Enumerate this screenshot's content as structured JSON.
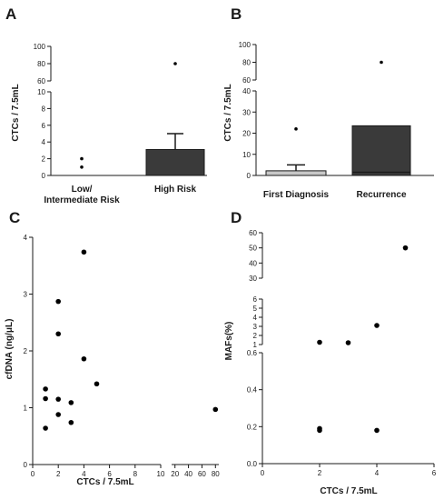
{
  "colors": {
    "axis": "#1a1a1a",
    "text": "#1a1a1a",
    "bar_dark": "#3a3a3a",
    "bar_light": "#c8c8c8",
    "point": "#000000"
  },
  "chart_data": [
    {
      "panel": "A",
      "type": "bar",
      "ylabel": "CTCs / 7.5mL",
      "broken_y_axis": true,
      "y_segments": [
        {
          "range": [
            0,
            10
          ],
          "ticks": [
            "0",
            "2",
            "4",
            "6",
            "8",
            "10"
          ]
        },
        {
          "range": [
            60,
            100
          ],
          "ticks": [
            "60",
            "80",
            "100"
          ]
        }
      ],
      "categories": [
        "Low/\nIntermediate Risk",
        "High Risk"
      ],
      "category_lines": [
        [
          "Low/",
          "Intermediate Risk"
        ],
        [
          "High Risk"
        ]
      ],
      "values": [
        0,
        3.1
      ],
      "error_upper": [
        0,
        5.0
      ],
      "outliers": [
        [
          2,
          1
        ],
        [
          80
        ]
      ]
    },
    {
      "panel": "B",
      "type": "bar",
      "ylabel": "CTCs / 7.5mL",
      "broken_y_axis": true,
      "y_segments": [
        {
          "range": [
            0,
            40
          ],
          "ticks": [
            "0",
            "10",
            "20",
            "30",
            "40"
          ]
        },
        {
          "range": [
            60,
            100
          ],
          "ticks": [
            "60",
            "80",
            "100"
          ]
        }
      ],
      "categories": [
        "First Diagnosis",
        "Recurrence"
      ],
      "category_lines": [
        [
          "First Diagnosis"
        ],
        [
          "Recurrence"
        ]
      ],
      "values": [
        2.2,
        23.5
      ],
      "median_line": [
        null,
        1.5
      ],
      "error_upper": [
        5.0,
        null
      ],
      "outliers": [
        [
          22
        ],
        [
          80
        ]
      ]
    },
    {
      "panel": "C",
      "type": "scatter",
      "xlabel": "CTCs / 7.5mL",
      "ylabel": "cfDNA (ng/μL)",
      "broken_x_axis": true,
      "x_segments": [
        {
          "range": [
            0,
            10
          ],
          "ticks": [
            "0",
            "2",
            "4",
            "6",
            "8",
            "10"
          ]
        },
        {
          "range": [
            15,
            85
          ],
          "ticks": [
            "20",
            "40",
            "60",
            "80"
          ]
        }
      ],
      "ylim": [
        0,
        4
      ],
      "yticks": [
        "0",
        "1",
        "2",
        "3",
        "4"
      ],
      "points": [
        {
          "x": 1,
          "y": 1.33
        },
        {
          "x": 1,
          "y": 1.16
        },
        {
          "x": 1,
          "y": 0.64
        },
        {
          "x": 2,
          "y": 2.87
        },
        {
          "x": 2,
          "y": 2.3
        },
        {
          "x": 2,
          "y": 1.15
        },
        {
          "x": 2,
          "y": 0.88
        },
        {
          "x": 3,
          "y": 1.09
        },
        {
          "x": 3,
          "y": 0.74
        },
        {
          "x": 4,
          "y": 3.74
        },
        {
          "x": 4,
          "y": 1.86
        },
        {
          "x": 5,
          "y": 1.42
        },
        {
          "x": 80,
          "y": 0.97
        }
      ]
    },
    {
      "panel": "D",
      "type": "scatter",
      "xlabel": "CTCs / 7.5mL",
      "ylabel": "MAFs(%)",
      "broken_y_axis": true,
      "xlim": [
        0,
        6
      ],
      "xticks": [
        "0",
        "2",
        "4",
        "6"
      ],
      "y_segments": [
        {
          "range": [
            0,
            0.6
          ],
          "ticks": [
            "0.0",
            "0.2",
            "0.4",
            "0.6"
          ]
        },
        {
          "range": [
            1,
            6
          ],
          "ticks": [
            "1",
            "2",
            "3",
            "4",
            "5",
            "6"
          ]
        },
        {
          "range": [
            30,
            60
          ],
          "ticks": [
            "30",
            "40",
            "50",
            "60"
          ]
        }
      ],
      "points": [
        {
          "x": 2,
          "y": 1.25
        },
        {
          "x": 2,
          "y": 0.19
        },
        {
          "x": 2,
          "y": 0.18
        },
        {
          "x": 3,
          "y": 1.2
        },
        {
          "x": 4,
          "y": 3.1
        },
        {
          "x": 4,
          "y": 0.18
        },
        {
          "x": 5,
          "y": 50
        }
      ]
    }
  ]
}
